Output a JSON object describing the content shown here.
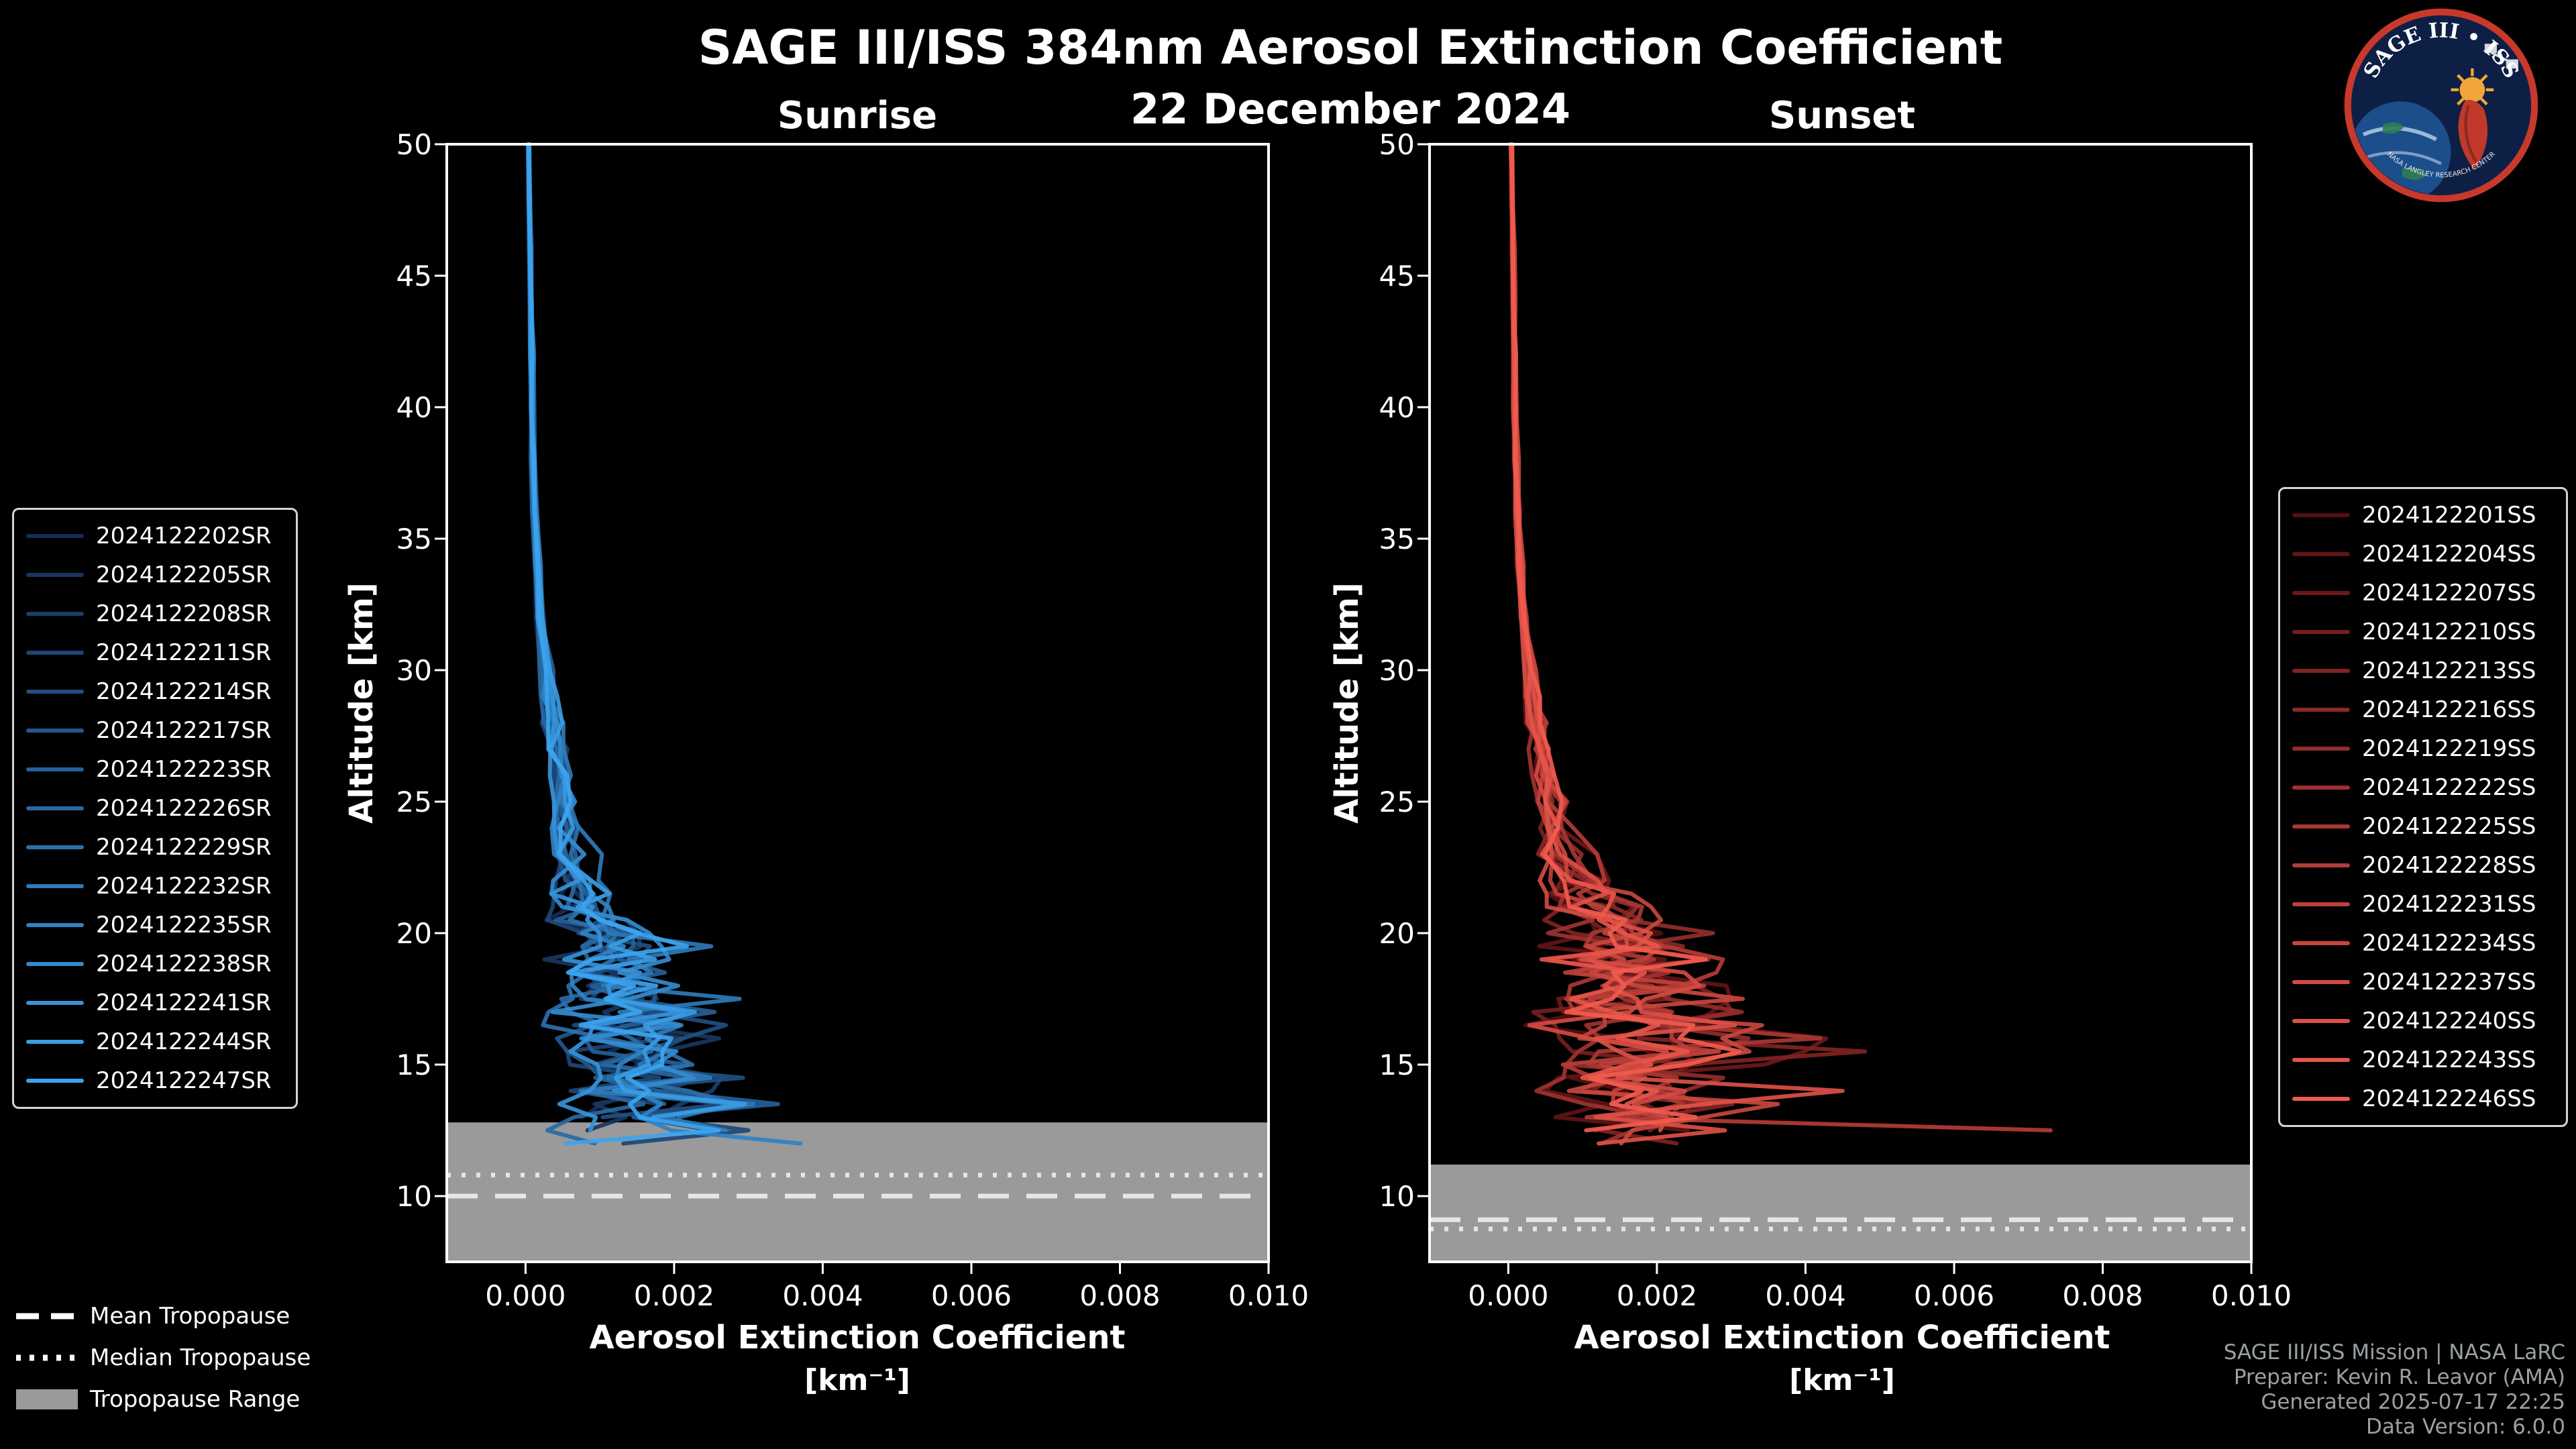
{
  "header": {
    "title": "SAGE III/ISS 384nm Aerosol Extinction Coefficient",
    "date": "22 December 2024"
  },
  "logo": {
    "title": "SAGE III • ISS",
    "ring_text": "NASA LANGLEY RESEARCH CENTER",
    "colors": {
      "ring": "#c8392b",
      "bg": "#0e1f45"
    }
  },
  "footer": {
    "tropopause_legend": [
      {
        "style": "dashed",
        "label": "Mean Tropopause"
      },
      {
        "style": "dotted",
        "label": "Median Tropopause"
      },
      {
        "style": "patch",
        "label": "Tropopause Range"
      }
    ],
    "credits": [
      "SAGE III/ISS Mission | NASA LaRC",
      "Preparer: Kevin R. Leavor (AMA)",
      "Generated 2025-07-17 22:25",
      "Data Version: 6.0.0"
    ]
  },
  "chart_data": [
    {
      "type": "line",
      "panel": "sunrise",
      "title": "Sunrise",
      "xlabel": "Aerosol Extinction Coefficient",
      "xlabel_units": "[km⁻¹]",
      "ylabel": "Altitude [km]",
      "xlim": [
        -0.00106,
        0.01
      ],
      "ylim": [
        7.5,
        50
      ],
      "xticks": [
        0.0,
        0.002,
        0.004,
        0.006,
        0.008,
        0.01
      ],
      "xtick_labels": [
        "0.000",
        "0.002",
        "0.004",
        "0.006",
        "0.008",
        "0.010"
      ],
      "yticks": [
        10,
        15,
        20,
        25,
        30,
        35,
        40,
        45,
        50
      ],
      "grid": false,
      "legend_position": "outside-left",
      "colors": {
        "band": "#9a9a9a",
        "tropopause_lines": "#e6e6e6"
      },
      "tropopause": {
        "mean": 10.0,
        "median": 10.8,
        "range": [
          7.5,
          12.8
        ]
      },
      "altitude_grid": [
        50,
        48,
        46,
        44,
        42,
        40,
        38,
        36,
        34,
        32,
        30,
        29,
        28,
        27,
        26,
        25,
        24,
        23,
        22,
        21.5,
        21,
        20.5,
        20,
        19.5,
        19,
        18.5,
        18,
        17.5,
        17,
        16.5,
        16,
        15.5,
        15,
        14.5,
        14,
        13.5,
        13,
        12.5,
        12
      ],
      "base_profile": [
        4e-05,
        5e-05,
        6e-05,
        7e-05,
        8e-05,
        9e-05,
        0.0001,
        0.00012,
        0.00015,
        0.0002,
        0.00028,
        0.00032,
        0.00036,
        0.0004,
        0.00045,
        0.0005,
        0.00055,
        0.0006,
        0.0007,
        0.00075,
        0.0008,
        0.0009,
        0.0011,
        0.0013,
        0.0012,
        0.0011,
        0.0012,
        0.0013,
        0.0014,
        0.0015,
        0.0016,
        0.0014,
        0.0015,
        0.0016,
        0.0014,
        0.0018,
        0.0013,
        0.0015,
        0.001
      ],
      "noise_amplitudes": [
        [
          30,
          0.18
        ],
        [
          24,
          0.3
        ],
        [
          20,
          0.45
        ],
        [
          0,
          0.65
        ]
      ],
      "series": [
        {
          "label": "2024122202SR",
          "color": "#152d57",
          "seed": 1,
          "scale": 0.8,
          "bottom": 12.8
        },
        {
          "label": "2024122205SR",
          "color": "#183660",
          "seed": 2,
          "scale": 0.95,
          "bottom": 12.2
        },
        {
          "label": "2024122208SR",
          "color": "#1a3e6b",
          "seed": 3,
          "scale": 1.1,
          "bottom": 13.0
        },
        {
          "label": "2024122211SR",
          "color": "#1d4776",
          "seed": 4,
          "scale": 0.85,
          "bottom": 12.0,
          "spike": {
            "alt": 12.5,
            "value": 0.003
          }
        },
        {
          "label": "2024122214SR",
          "color": "#204f81",
          "seed": 5,
          "scale": 1.05,
          "bottom": 12.6
        },
        {
          "label": "2024122217SR",
          "color": "#23588c",
          "seed": 6,
          "scale": 0.9,
          "bottom": 13.2
        },
        {
          "label": "2024122223SR",
          "color": "#256097",
          "seed": 7,
          "scale": 1.15,
          "bottom": 12.4,
          "spike": {
            "alt": 13.5,
            "value": 0.0034
          }
        },
        {
          "label": "2024122226SR",
          "color": "#2869a2",
          "seed": 8,
          "scale": 0.8,
          "bottom": 12.0
        },
        {
          "label": "2024122229SR",
          "color": "#2b71ad",
          "seed": 9,
          "scale": 1.0,
          "bottom": 12.9
        },
        {
          "label": "2024122232SR",
          "color": "#2e7ab8",
          "seed": 10,
          "scale": 1.2,
          "bottom": 12.3,
          "spike": {
            "alt": 19.5,
            "value": 0.0025
          }
        },
        {
          "label": "2024122235SR",
          "color": "#3082c3",
          "seed": 11,
          "scale": 0.95,
          "bottom": 12.0,
          "spike": {
            "alt": 12.0,
            "value": 0.0037
          }
        },
        {
          "label": "2024122238SR",
          "color": "#338bce",
          "seed": 12,
          "scale": 1.05,
          "bottom": 13.4
        },
        {
          "label": "2024122241SR",
          "color": "#3693d9",
          "seed": 13,
          "scale": 0.9,
          "bottom": 12.1
        },
        {
          "label": "2024122244SR",
          "color": "#399ce4",
          "seed": 14,
          "scale": 1.1,
          "bottom": 12.6
        },
        {
          "label": "2024122247SR",
          "color": "#3ca4ef",
          "seed": 15,
          "scale": 1.0,
          "bottom": 12.0
        }
      ]
    },
    {
      "type": "line",
      "panel": "sunset",
      "title": "Sunset",
      "xlabel": "Aerosol Extinction Coefficient",
      "xlabel_units": "[km⁻¹]",
      "ylabel": "Altitude [km]",
      "xlim": [
        -0.00106,
        0.01
      ],
      "ylim": [
        7.5,
        50
      ],
      "xticks": [
        0.0,
        0.002,
        0.004,
        0.006,
        0.008,
        0.01
      ],
      "xtick_labels": [
        "0.000",
        "0.002",
        "0.004",
        "0.006",
        "0.008",
        "0.010"
      ],
      "yticks": [
        10,
        15,
        20,
        25,
        30,
        35,
        40,
        45,
        50
      ],
      "grid": false,
      "legend_position": "outside-right",
      "colors": {
        "band": "#9a9a9a",
        "tropopause_lines": "#e6e6e6"
      },
      "tropopause": {
        "mean": 9.1,
        "median": 8.75,
        "range": [
          7.5,
          11.2
        ]
      },
      "altitude_grid": [
        50,
        48,
        46,
        44,
        42,
        40,
        38,
        36,
        34,
        32,
        30,
        29,
        28,
        27,
        26,
        25,
        24,
        23,
        22,
        21.5,
        21,
        20.5,
        20,
        19.5,
        19,
        18.5,
        18,
        17.5,
        17,
        16.5,
        16,
        15.5,
        15,
        14.5,
        14,
        13.5,
        13,
        12.5,
        12
      ],
      "base_profile": [
        4e-05,
        5e-05,
        6e-05,
        7e-05,
        8e-05,
        9e-05,
        0.0001,
        0.00012,
        0.00015,
        0.0002,
        0.00028,
        0.00032,
        0.00038,
        0.00044,
        0.0005,
        0.00058,
        0.00066,
        0.00078,
        0.0009,
        0.001,
        0.0011,
        0.0013,
        0.0015,
        0.0017,
        0.0016,
        0.0015,
        0.0017,
        0.0018,
        0.0019,
        0.002,
        0.0022,
        0.0021,
        0.0019,
        0.0018,
        0.0016,
        0.002,
        0.0015,
        0.0017,
        0.0012
      ],
      "noise_amplitudes": [
        [
          30,
          0.18
        ],
        [
          24,
          0.3
        ],
        [
          20,
          0.45
        ],
        [
          0,
          0.65
        ]
      ],
      "series": [
        {
          "label": "2024122201SS",
          "color": "#570f12",
          "seed": 21,
          "scale": 0.85,
          "bottom": 12.6
        },
        {
          "label": "2024122204SS",
          "color": "#611416",
          "seed": 22,
          "scale": 1.0,
          "bottom": 12.1
        },
        {
          "label": "2024122207SS",
          "color": "#6b191a",
          "seed": 23,
          "scale": 1.1,
          "bottom": 12.9
        },
        {
          "label": "2024122210SS",
          "color": "#761e1e",
          "seed": 24,
          "scale": 0.9,
          "bottom": 12.3
        },
        {
          "label": "2024122213SS",
          "color": "#802322",
          "seed": 25,
          "scale": 1.05,
          "bottom": 12.0,
          "spike": {
            "alt": 15.5,
            "value": 0.0048
          }
        },
        {
          "label": "2024122216SS",
          "color": "#8a2826",
          "seed": 26,
          "scale": 0.95,
          "bottom": 13.0
        },
        {
          "label": "2024122219SS",
          "color": "#942d2a",
          "seed": 27,
          "scale": 1.15,
          "bottom": 12.4
        },
        {
          "label": "2024122222SS",
          "color": "#9f322e",
          "seed": 28,
          "scale": 0.85,
          "bottom": 12.0
        },
        {
          "label": "2024122225SS",
          "color": "#a93732",
          "seed": 29,
          "scale": 1.0,
          "bottom": 12.7,
          "spike": {
            "alt": 16.0,
            "value": 0.0042
          }
        },
        {
          "label": "2024122228SS",
          "color": "#b33c36",
          "seed": 30,
          "scale": 1.1,
          "bottom": 12.4,
          "spike": {
            "alt": 12.5,
            "value": 0.0073
          }
        },
        {
          "label": "2024122231SS",
          "color": "#bd413a",
          "seed": 31,
          "scale": 0.95,
          "bottom": 12.9
        },
        {
          "label": "2024122234SS",
          "color": "#c8463e",
          "seed": 32,
          "scale": 1.2,
          "bottom": 12.0
        },
        {
          "label": "2024122237SS",
          "color": "#d24b42",
          "seed": 33,
          "scale": 0.9,
          "bottom": 12.5
        },
        {
          "label": "2024122240SS",
          "color": "#dc5046",
          "seed": 34,
          "scale": 1.05,
          "bottom": 12.0,
          "spike": {
            "alt": 14.0,
            "value": 0.0045
          }
        },
        {
          "label": "2024122243SS",
          "color": "#e6554a",
          "seed": 35,
          "scale": 1.0,
          "bottom": 13.1
        },
        {
          "label": "2024122246SS",
          "color": "#f15b4e",
          "seed": 36,
          "scale": 1.1,
          "bottom": 12.3
        }
      ]
    }
  ]
}
